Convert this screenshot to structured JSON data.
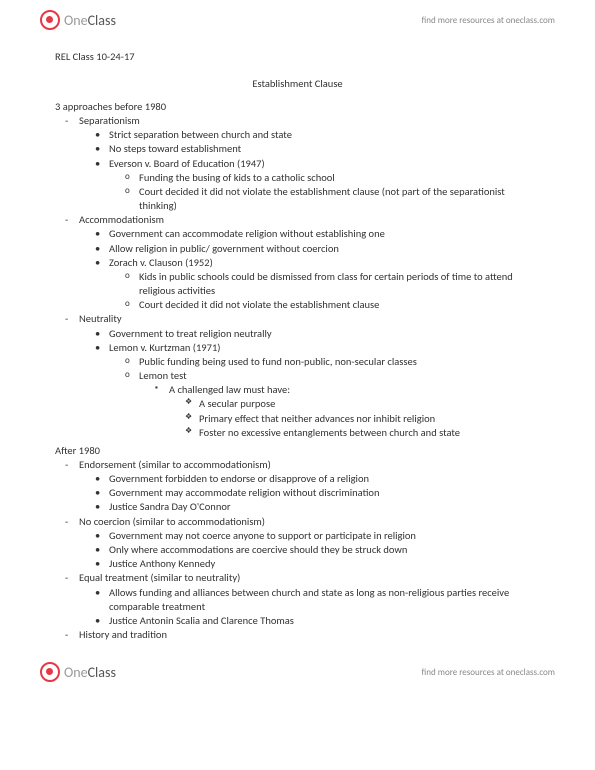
{
  "brand": {
    "one": "One",
    "class": "Class"
  },
  "tagline": "find more resources at oneclass.com",
  "doc": {
    "class_label": "REL Class 10-24-17",
    "title": "Establishment Clause",
    "before_heading": "3 approaches before 1980",
    "after_heading": "After 1980",
    "before": [
      {
        "name": "Separationism",
        "points": [
          {
            "text": "Strict separation between church and state"
          },
          {
            "text": "No steps toward establishment"
          },
          {
            "text": "Everson v. Board of Education (1947)",
            "sub": [
              "Funding the busing of kids to a catholic school",
              "Court decided it did not violate the establishment clause (not part of the separationist thinking)"
            ]
          }
        ]
      },
      {
        "name": "Accommodationism",
        "points": [
          {
            "text": "Government can accommodate religion without establishing one"
          },
          {
            "text": "Allow religion in public/ government without coercion"
          },
          {
            "text": "Zorach v. Clauson (1952)",
            "sub": [
              "Kids in public schools could be dismissed from class for certain periods of time to attend religious activities",
              "Court decided it did not violate the establishment clause"
            ]
          }
        ]
      },
      {
        "name": "Neutrality",
        "points": [
          {
            "text": "Government to treat religion neutrally"
          },
          {
            "text": "Lemon v. Kurtzman (1971)",
            "sub": [
              "Public funding being used to fund non-public, non-secular classes",
              "Lemon test"
            ],
            "sub2_label": "A challenged law must have:",
            "sub2": [
              "A secular purpose",
              "Primary effect that neither advances nor inhibit religion",
              "Foster no excessive entanglements between church and state"
            ]
          }
        ]
      }
    ],
    "after": [
      {
        "name": "Endorsement (similar to accommodationism)",
        "points": [
          {
            "text": "Government forbidden to endorse or disapprove of a religion"
          },
          {
            "text": "Government may accommodate religion without discrimination"
          },
          {
            "text": "Justice Sandra Day O'Connor"
          }
        ]
      },
      {
        "name": "No coercion (similar to accommodationism)",
        "points": [
          {
            "text": "Government may not coerce anyone to support or participate in religion"
          },
          {
            "text": "Only where accommodations are coercive should they be struck down"
          },
          {
            "text": "Justice Anthony Kennedy"
          }
        ]
      },
      {
        "name": "Equal treatment (similar to neutrality)",
        "points": [
          {
            "text": "Allows funding and alliances between church and state as long as non-religious parties receive comparable treatment"
          },
          {
            "text": "Justice Antonin Scalia and Clarence Thomas"
          }
        ]
      },
      {
        "name": "History and tradition",
        "points": []
      }
    ]
  }
}
